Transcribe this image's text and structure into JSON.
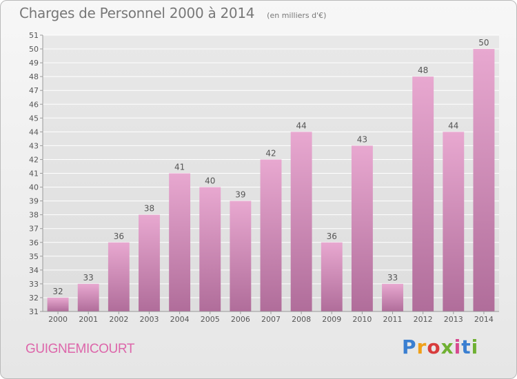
{
  "header": {
    "title": "Charges de Personnel 2000 à 2014",
    "unit_note": "(en milliers d'€)"
  },
  "footer": {
    "town": "GUIGNEMICOURT",
    "logo": {
      "p": "P",
      "r": "r",
      "o": "o",
      "x": "x",
      "i1": "i",
      "t": "t",
      "i2": "i"
    }
  },
  "colors": {
    "bar_top": "#e8a8d0",
    "bar_bottom": "#b06d9a",
    "grid": "#ffffff",
    "text": "#555555"
  },
  "chart_data": {
    "type": "bar",
    "title": "Charges de Personnel 2000 à 2014",
    "ylabel": "(en milliers d'€)",
    "categories": [
      "2000",
      "2001",
      "2002",
      "2003",
      "2004",
      "2005",
      "2006",
      "2007",
      "2008",
      "2009",
      "2010",
      "2011",
      "2012",
      "2013",
      "2014"
    ],
    "values": [
      32,
      33,
      36,
      38,
      41,
      40,
      39,
      42,
      44,
      36,
      43,
      33,
      48,
      44,
      50
    ],
    "ylim": [
      31,
      51
    ],
    "yticks": [
      31,
      32,
      33,
      34,
      35,
      36,
      37,
      38,
      39,
      40,
      41,
      42,
      43,
      44,
      45,
      46,
      47,
      48,
      49,
      50,
      51
    ],
    "grid": true,
    "data_labels": true
  }
}
